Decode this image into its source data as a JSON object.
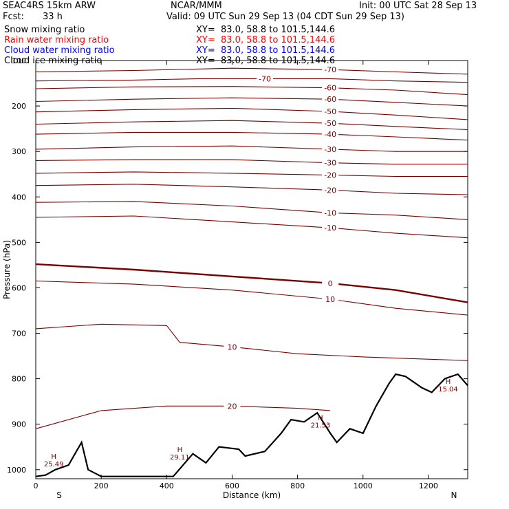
{
  "header": {
    "model": "SEAC4RS 15km ARW",
    "org": "NCAR/MMM",
    "init": "Init: 00 UTC Sat 28 Sep 13",
    "fcst_label": "Fcst:",
    "fcst_value": "33 h",
    "valid": "Valid: 09 UTC Sun 29 Sep 13 (04 CDT Sun 29 Sep 13)"
  },
  "legend": [
    {
      "name": "Snow mixing ratio",
      "xy": "XY=  83.0, 58.8 to 101.5,144.6",
      "color": "#000000"
    },
    {
      "name": "Rain water mixing ratio",
      "xy": "XY=  83.0, 58.8 to 101.5,144.6",
      "color": "#ff0000"
    },
    {
      "name": "Cloud water mixing ratio",
      "xy": "XY=  83.0, 58.8 to 101.5,144.6",
      "color": "#0000ff"
    },
    {
      "name": "Cloud ice mixing ratio",
      "xy": "XY=  83.0, 58.8 to 101.5,144.6",
      "color": "#000000"
    }
  ],
  "colors": {
    "isotherm": "#7a0000",
    "terrain": "#000000"
  },
  "chart_data": {
    "type": "line",
    "xlabel": "Distance (km)",
    "ylabel": "Pressure (hPa)",
    "xlim": [
      0,
      1320
    ],
    "ylim": [
      1020,
      100
    ],
    "xticks": [
      "0",
      "200",
      "400",
      "600",
      "800",
      "1000",
      "1200"
    ],
    "yticks": [
      "100",
      "200",
      "300",
      "400",
      "500",
      "600",
      "700",
      "800",
      "900",
      "1000"
    ],
    "x_end_labels": {
      "left": "S",
      "right": "N"
    },
    "isotherms": [
      {
        "label": "-70",
        "points": [
          [
            0,
            125
          ],
          [
            300,
            122
          ],
          [
            600,
            117
          ],
          [
            900,
            120
          ],
          [
            1100,
            125
          ],
          [
            1320,
            130
          ]
        ]
      },
      {
        "label": "-70",
        "points": [
          [
            0,
            145
          ],
          [
            300,
            143
          ],
          [
            500,
            140
          ],
          [
            700,
            140
          ],
          [
            900,
            140
          ],
          [
            1100,
            145
          ],
          [
            1320,
            148
          ]
        ]
      },
      {
        "label": "-60",
        "points": [
          [
            0,
            162
          ],
          [
            300,
            158
          ],
          [
            600,
            157
          ],
          [
            900,
            160
          ],
          [
            1100,
            165
          ],
          [
            1320,
            175
          ]
        ]
      },
      {
        "label": "-60",
        "points": [
          [
            0,
            190
          ],
          [
            300,
            185
          ],
          [
            600,
            182
          ],
          [
            900,
            185
          ],
          [
            1100,
            192
          ],
          [
            1320,
            200
          ]
        ]
      },
      {
        "label": "-50",
        "points": [
          [
            0,
            213
          ],
          [
            300,
            208
          ],
          [
            600,
            205
          ],
          [
            900,
            212
          ],
          [
            1100,
            220
          ],
          [
            1320,
            230
          ]
        ]
      },
      {
        "label": "-50",
        "points": [
          [
            0,
            240
          ],
          [
            300,
            235
          ],
          [
            600,
            232
          ],
          [
            900,
            238
          ],
          [
            1100,
            245
          ],
          [
            1320,
            252
          ]
        ]
      },
      {
        "label": "-40",
        "points": [
          [
            0,
            262
          ],
          [
            300,
            258
          ],
          [
            600,
            258
          ],
          [
            900,
            262
          ],
          [
            1100,
            268
          ],
          [
            1320,
            275
          ]
        ]
      },
      {
        "label": "-30",
        "points": [
          [
            0,
            295
          ],
          [
            300,
            290
          ],
          [
            600,
            288
          ],
          [
            900,
            295
          ],
          [
            1100,
            300
          ],
          [
            1320,
            300
          ]
        ]
      },
      {
        "label": "-30",
        "points": [
          [
            0,
            320
          ],
          [
            300,
            318
          ],
          [
            600,
            318
          ],
          [
            900,
            325
          ],
          [
            1100,
            328
          ],
          [
            1320,
            328
          ]
        ]
      },
      {
        "label": "-20",
        "points": [
          [
            0,
            348
          ],
          [
            300,
            345
          ],
          [
            600,
            348
          ],
          [
            900,
            352
          ],
          [
            1100,
            355
          ],
          [
            1320,
            355
          ]
        ]
      },
      {
        "label": "-20",
        "points": [
          [
            0,
            375
          ],
          [
            300,
            372
          ],
          [
            600,
            378
          ],
          [
            900,
            385
          ],
          [
            1100,
            392
          ],
          [
            1320,
            395
          ]
        ]
      },
      {
        "label": "-10",
        "points": [
          [
            0,
            412
          ],
          [
            300,
            410
          ],
          [
            600,
            420
          ],
          [
            900,
            435
          ],
          [
            1100,
            440
          ],
          [
            1320,
            450
          ]
        ]
      },
      {
        "label": "-10",
        "points": [
          [
            0,
            445
          ],
          [
            300,
            442
          ],
          [
            600,
            455
          ],
          [
            900,
            468
          ],
          [
            1100,
            480
          ],
          [
            1320,
            490
          ]
        ]
      },
      {
        "label": "0",
        "points": [
          [
            0,
            548
          ],
          [
            300,
            560
          ],
          [
            600,
            575
          ],
          [
            900,
            590
          ],
          [
            1100,
            605
          ],
          [
            1320,
            632
          ]
        ]
      },
      {
        "label": "10",
        "points": [
          [
            0,
            585
          ],
          [
            300,
            592
          ],
          [
            600,
            605
          ],
          [
            900,
            625
          ],
          [
            1100,
            645
          ],
          [
            1320,
            660
          ]
        ]
      },
      {
        "label": "10",
        "points": [
          [
            0,
            690
          ],
          [
            200,
            680
          ],
          [
            400,
            683
          ],
          [
            440,
            720
          ],
          [
            600,
            730
          ],
          [
            800,
            745
          ],
          [
            1000,
            752
          ],
          [
            1320,
            760
          ]
        ]
      },
      {
        "label": "20",
        "points": [
          [
            0,
            910
          ],
          [
            200,
            870
          ],
          [
            400,
            860
          ],
          [
            600,
            860
          ],
          [
            800,
            865
          ],
          [
            900,
            870
          ]
        ]
      }
    ],
    "terrain": {
      "x": [
        0,
        30,
        60,
        100,
        140,
        160,
        200,
        300,
        420,
        480,
        520,
        560,
        620,
        640,
        700,
        750,
        780,
        820,
        860,
        900,
        920,
        960,
        1000,
        1040,
        1080,
        1100,
        1130,
        1180,
        1210,
        1250,
        1290,
        1320
      ],
      "p": [
        1015,
        1012,
        1000,
        990,
        940,
        1000,
        1015,
        1015,
        1015,
        965,
        985,
        950,
        955,
        970,
        960,
        920,
        890,
        895,
        875,
        920,
        940,
        910,
        920,
        860,
        810,
        790,
        795,
        820,
        830,
        800,
        790,
        815
      ]
    },
    "highs": [
      {
        "x": 55,
        "p": 985,
        "value": "25.49"
      },
      {
        "x": 440,
        "p": 970,
        "value": "29.11"
      },
      {
        "x": 870,
        "p": 900,
        "value": "21.53"
      },
      {
        "x": 1260,
        "p": 820,
        "value": "15.04"
      }
    ]
  }
}
